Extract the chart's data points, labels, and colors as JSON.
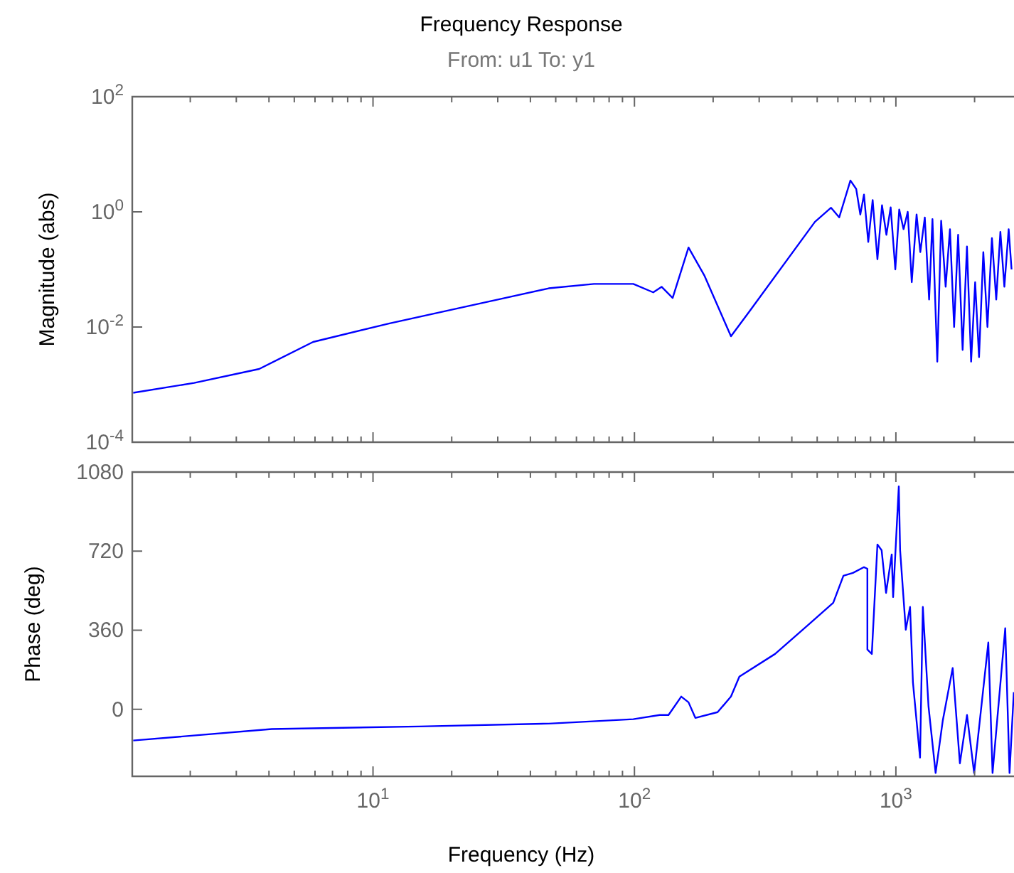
{
  "chart_data": [
    {
      "type": "line",
      "title": "Frequency Response",
      "subtitle": "From: u1  To: y1",
      "ylabel": "Magnitude (abs)",
      "log": "xy",
      "grid": false,
      "tick_labels": "y",
      "xlim": [
        1.2,
        2830
      ],
      "ylim": [
        0.0001,
        100
      ],
      "xticks": [
        {
          "value": 2,
          "label": null
        },
        {
          "value": 3,
          "label": null
        },
        {
          "value": 4,
          "label": null
        },
        {
          "value": 5,
          "label": null
        },
        {
          "value": 6,
          "label": null
        },
        {
          "value": 7,
          "label": null
        },
        {
          "value": 8,
          "label": null
        },
        {
          "value": 9,
          "label": null
        },
        {
          "value": 10,
          "label": null
        },
        {
          "value": 20,
          "label": null
        },
        {
          "value": 30,
          "label": null
        },
        {
          "value": 40,
          "label": null
        },
        {
          "value": 50,
          "label": null
        },
        {
          "value": 60,
          "label": null
        },
        {
          "value": 70,
          "label": null
        },
        {
          "value": 80,
          "label": null
        },
        {
          "value": 90,
          "label": null
        },
        {
          "value": 100,
          "label": null
        },
        {
          "value": 200,
          "label": null
        },
        {
          "value": 300,
          "label": null
        },
        {
          "value": 400,
          "label": null
        },
        {
          "value": 500,
          "label": null
        },
        {
          "value": 600,
          "label": null
        },
        {
          "value": 700,
          "label": null
        },
        {
          "value": 800,
          "label": null
        },
        {
          "value": 900,
          "label": null
        },
        {
          "value": 1000,
          "label": null
        },
        {
          "value": 2000,
          "label": null
        }
      ],
      "yticks": [
        {
          "value": 0.0001,
          "label": "10$^{-4}$"
        },
        {
          "value": 0.01,
          "label": "10$^{-2}$"
        },
        {
          "value": 1,
          "label": "10$^{0}$"
        },
        {
          "value": 100,
          "label": "10$^{2}$"
        }
      ],
      "series": [
        {
          "color": "#0000ff",
          "x": [
            1.21,
            2.07,
            3.67,
            5.9,
            11.5,
            20,
            32,
            47,
            70,
            99,
            118,
            127,
            140,
            161,
            185,
            234,
            276,
            490,
            565,
            607,
            670,
            705,
            731,
            755,
            784,
            815,
            850,
            885,
            920,
            955,
            995,
            1030,
            1070,
            1110,
            1150,
            1200,
            1240,
            1290,
            1340,
            1380,
            1440,
            1490,
            1550,
            1610,
            1670,
            1730,
            1800,
            1870,
            1940,
            2010,
            2080,
            2160,
            2240,
            2330,
            2420,
            2510,
            2600,
            2700,
            2770
          ],
          "values": [
            0.00072,
            0.00107,
            0.00187,
            0.0055,
            0.0115,
            0.02,
            0.032,
            0.047,
            0.056,
            0.056,
            0.04,
            0.05,
            0.032,
            0.24,
            0.079,
            0.0069,
            0.019,
            0.67,
            1.18,
            0.8,
            3.5,
            2.5,
            0.9,
            2.0,
            0.3,
            1.6,
            0.15,
            1.3,
            0.4,
            1.2,
            0.1,
            1.1,
            0.5,
            1.0,
            0.06,
            0.9,
            0.2,
            0.8,
            0.03,
            0.75,
            0.0025,
            0.7,
            0.05,
            0.5,
            0.01,
            0.4,
            0.004,
            0.25,
            0.0025,
            0.06,
            0.003,
            0.2,
            0.01,
            0.35,
            0.03,
            0.45,
            0.05,
            0.5,
            0.1
          ]
        }
      ]
    },
    {
      "type": "line",
      "xlabel": "Frequency  (Hz)",
      "ylabel": "Phase (deg)",
      "log": "x",
      "grid": false,
      "xlim": [
        1.2,
        2830
      ],
      "ylim": [
        -305,
        1080
      ],
      "xticks": [
        {
          "value": 2,
          "label": null
        },
        {
          "value": 3,
          "label": null
        },
        {
          "value": 4,
          "label": null
        },
        {
          "value": 5,
          "label": null
        },
        {
          "value": 6,
          "label": null
        },
        {
          "value": 7,
          "label": null
        },
        {
          "value": 8,
          "label": null
        },
        {
          "value": 9,
          "label": null
        },
        {
          "value": 10,
          "label": "10$^{1}$"
        },
        {
          "value": 20,
          "label": null
        },
        {
          "value": 30,
          "label": null
        },
        {
          "value": 40,
          "label": null
        },
        {
          "value": 50,
          "label": null
        },
        {
          "value": 60,
          "label": null
        },
        {
          "value": 70,
          "label": null
        },
        {
          "value": 80,
          "label": null
        },
        {
          "value": 90,
          "label": null
        },
        {
          "value": 100,
          "label": "10$^{2}$"
        },
        {
          "value": 200,
          "label": null
        },
        {
          "value": 300,
          "label": null
        },
        {
          "value": 400,
          "label": null
        },
        {
          "value": 500,
          "label": null
        },
        {
          "value": 600,
          "label": null
        },
        {
          "value": 700,
          "label": null
        },
        {
          "value": 800,
          "label": null
        },
        {
          "value": 900,
          "label": null
        },
        {
          "value": 1000,
          "label": "10$^{3}$"
        },
        {
          "value": 2000,
          "label": null
        }
      ],
      "yticks": [
        0,
        360,
        720,
        1080
      ],
      "series": [
        {
          "color": "#0000ff",
          "x": [
            1.21,
            4.1,
            15,
            47,
            99,
            125,
            135,
            151,
            161,
            171,
            208,
            234,
            252,
            345,
            460,
            576,
            630,
            685,
            755,
            778,
            778,
            809,
            850,
            882,
            917,
            964,
            976,
            1026,
            1038,
            1091,
            1133,
            1162,
            1237,
            1268,
            1333,
            1419,
            1511,
            1649,
            1757,
            1871,
            1992,
            2257,
            2343,
            2620,
            2721,
            2825
          ],
          "values": [
            -142,
            -90,
            -78,
            -65,
            -45,
            -26,
            -26,
            58,
            32,
            -39,
            -13,
            58,
            149,
            252,
            382,
            485,
            608,
            621,
            647,
            640,
            272,
            252,
            750,
            724,
            530,
            705,
            511,
            1015,
            724,
            362,
            466,
            123,
            -220,
            466,
            13,
            -290,
            -52,
            188,
            -246,
            -26,
            -290,
            304,
            -290,
            369,
            -290,
            78
          ]
        }
      ]
    }
  ]
}
